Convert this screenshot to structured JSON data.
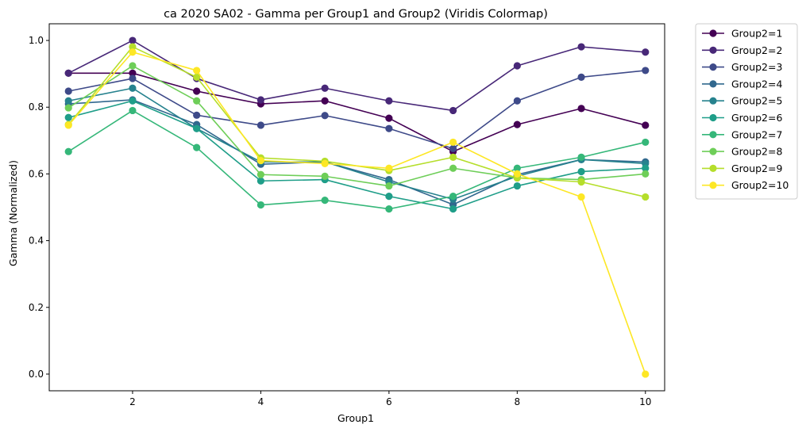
{
  "chart_data": {
    "type": "line",
    "title": "ca 2020 SA02 - Gamma per Group1 and Group2 (Viridis Colormap)",
    "xlabel": "Group1",
    "ylabel": "Gamma (Normalized)",
    "xlim": [
      0.7,
      10.3
    ],
    "ylim": [
      -0.05,
      1.05
    ],
    "xticks": [
      2,
      4,
      6,
      8,
      10
    ],
    "yticks": [
      0.0,
      0.2,
      0.4,
      0.6,
      0.8,
      1.0
    ],
    "ytick_labels": [
      "0.0",
      "0.2",
      "0.4",
      "0.6",
      "0.8",
      "1.0"
    ],
    "legend_position": "outside-top-right",
    "x": [
      1,
      2,
      3,
      4,
      5,
      6,
      7,
      8,
      9,
      10
    ],
    "series": [
      {
        "name": "Group2=1",
        "color": "#440154",
        "values": [
          0.902,
          0.902,
          0.848,
          0.81,
          0.819,
          0.767,
          0.667,
          0.748,
          0.796,
          0.746
        ]
      },
      {
        "name": "Group2=2",
        "color": "#482878",
        "values": [
          0.902,
          1.0,
          0.886,
          0.822,
          0.857,
          0.819,
          0.79,
          0.924,
          0.981,
          0.965
        ]
      },
      {
        "name": "Group2=3",
        "color": "#3e4a89",
        "values": [
          0.848,
          0.886,
          0.776,
          0.746,
          0.775,
          0.736,
          0.676,
          0.819,
          0.89,
          0.91
        ]
      },
      {
        "name": "Group2=4",
        "color": "#31688e",
        "values": [
          0.81,
          0.822,
          0.748,
          0.629,
          0.636,
          0.583,
          0.508,
          0.598,
          0.643,
          0.636
        ]
      },
      {
        "name": "Group2=5",
        "color": "#26828e",
        "values": [
          0.819,
          0.857,
          0.736,
          0.636,
          0.636,
          0.576,
          0.524,
          0.593,
          0.643,
          0.631
        ]
      },
      {
        "name": "Group2=6",
        "color": "#1f9e89",
        "values": [
          0.769,
          0.819,
          0.736,
          0.579,
          0.583,
          0.533,
          0.495,
          0.564,
          0.607,
          0.617
        ]
      },
      {
        "name": "Group2=7",
        "color": "#35b779",
        "values": [
          0.667,
          0.79,
          0.679,
          0.507,
          0.521,
          0.495,
          0.533,
          0.617,
          0.65,
          0.695
        ]
      },
      {
        "name": "Group2=8",
        "color": "#6ece58",
        "values": [
          0.798,
          0.924,
          0.819,
          0.598,
          0.593,
          0.564,
          0.617,
          0.588,
          0.583,
          0.6
        ]
      },
      {
        "name": "Group2=9",
        "color": "#b5de2b",
        "values": [
          0.748,
          0.981,
          0.89,
          0.648,
          0.638,
          0.61,
          0.65,
          0.588,
          0.576,
          0.531
        ]
      },
      {
        "name": "Group2=10",
        "color": "#fde725",
        "values": [
          0.746,
          0.965,
          0.91,
          0.64,
          0.631,
          0.617,
          0.695,
          0.6,
          0.531,
          0.0
        ]
      }
    ]
  }
}
